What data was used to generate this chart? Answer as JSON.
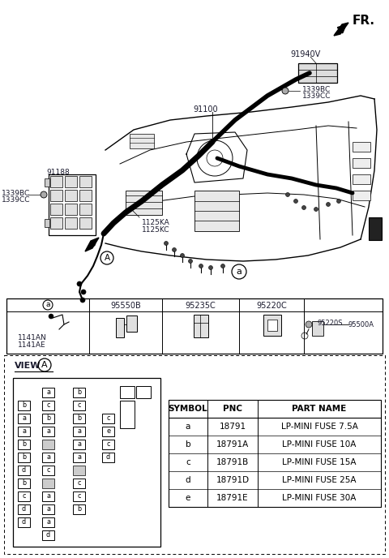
{
  "fig_width": 4.8,
  "fig_height": 6.88,
  "dpi": 100,
  "bg_color": "#ffffff",
  "part_table": {
    "headers": [
      "SYMBOL",
      "PNC",
      "PART NAME"
    ],
    "rows": [
      [
        "a",
        "18791",
        "LP-MINI FUSE 7.5A"
      ],
      [
        "b",
        "18791A",
        "LP-MINI FUSE 10A"
      ],
      [
        "c",
        "18791B",
        "LP-MINI FUSE 15A"
      ],
      [
        "d",
        "18791D",
        "LP-MINI FUSE 25A"
      ],
      [
        "e",
        "18791E",
        "LP-MINI FUSE 30A"
      ]
    ]
  },
  "comp_table_labels": [
    "a",
    "95550B",
    "95235C",
    "95220C",
    ""
  ],
  "fuse_col1": [
    "b",
    "a",
    "a",
    "b",
    "b",
    "d",
    "b",
    "c",
    "d",
    "d"
  ],
  "fuse_col2": [
    "a",
    "c",
    "b",
    "a",
    null,
    "a",
    "c",
    null,
    "a",
    "a",
    "a",
    "d"
  ],
  "fuse_col3": [
    "b",
    "c",
    "b",
    "a",
    "a",
    "a",
    null,
    "c",
    "c",
    "b"
  ],
  "fuse_col4": [
    "c",
    "e",
    "c",
    "d"
  ],
  "diagram_labels": {
    "FR": "FR.",
    "n91940V": "91940V",
    "n91100": "91100",
    "n91188": "91188",
    "n1339BC_top": "1339BC",
    "n1339CC_top": "1339CC",
    "n1339BC_left": "1339BC",
    "n1339CC_left": "1339CC",
    "n1125KA": "1125KA",
    "n1125KC": "1125KC",
    "n1141AN": "1141AN",
    "n1141AE": "1141AE",
    "n95220S": "95220S",
    "n95500A": "95500A",
    "na_circle": "a",
    "nA_circle": "A"
  }
}
